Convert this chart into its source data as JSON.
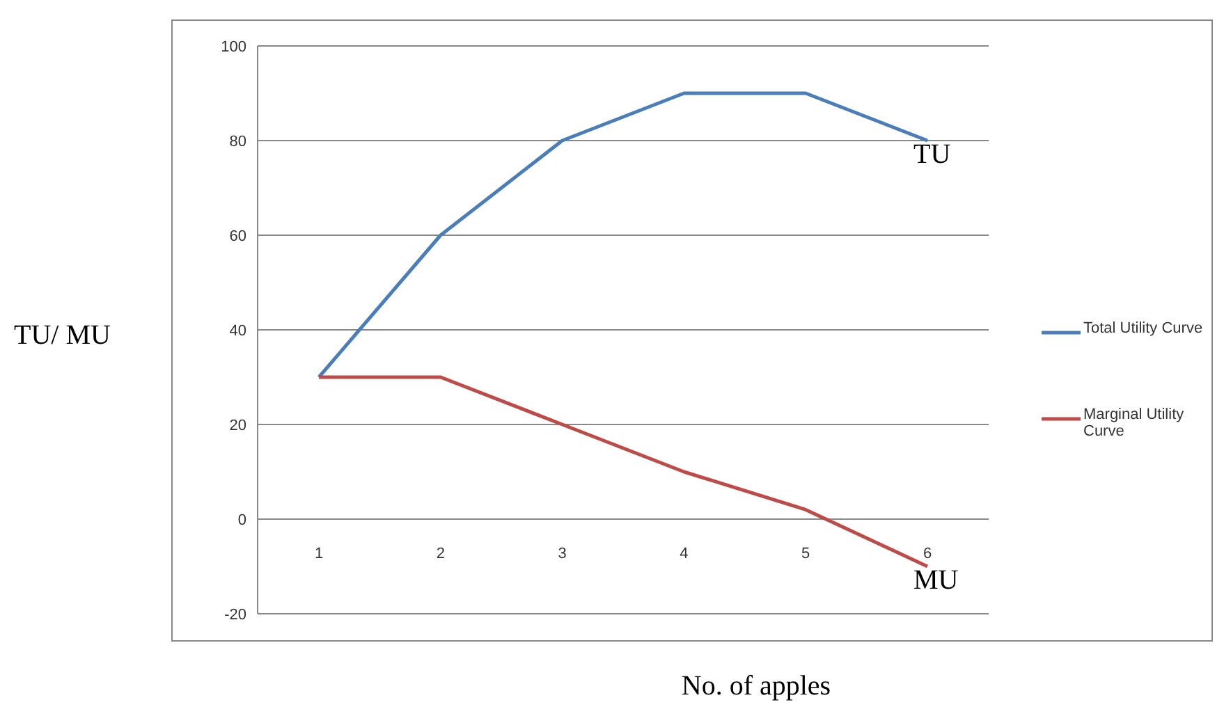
{
  "chart_data": {
    "type": "line",
    "xlabel": "No. of apples",
    "ylabel": "TU/ MU",
    "categories": [
      "1",
      "2",
      "3",
      "4",
      "5",
      "6"
    ],
    "series": [
      {
        "name": "Total Utility Curve",
        "color": "#4a7ebb",
        "values": [
          30,
          60,
          80,
          90,
          90,
          80
        ]
      },
      {
        "name": "Marginal Utility Curve",
        "color": "#be4b48",
        "values": [
          30,
          30,
          20,
          10,
          2,
          -10
        ]
      }
    ],
    "ylim": [
      -20,
      100
    ],
    "yticks": [
      -20,
      0,
      20,
      40,
      60,
      80,
      100
    ],
    "grid": "y",
    "legend": "right",
    "marker": "none",
    "annotations": [
      {
        "text": "TU",
        "x": "6",
        "y": 80
      },
      {
        "text": "MU",
        "x": "6",
        "y": -10
      }
    ]
  }
}
